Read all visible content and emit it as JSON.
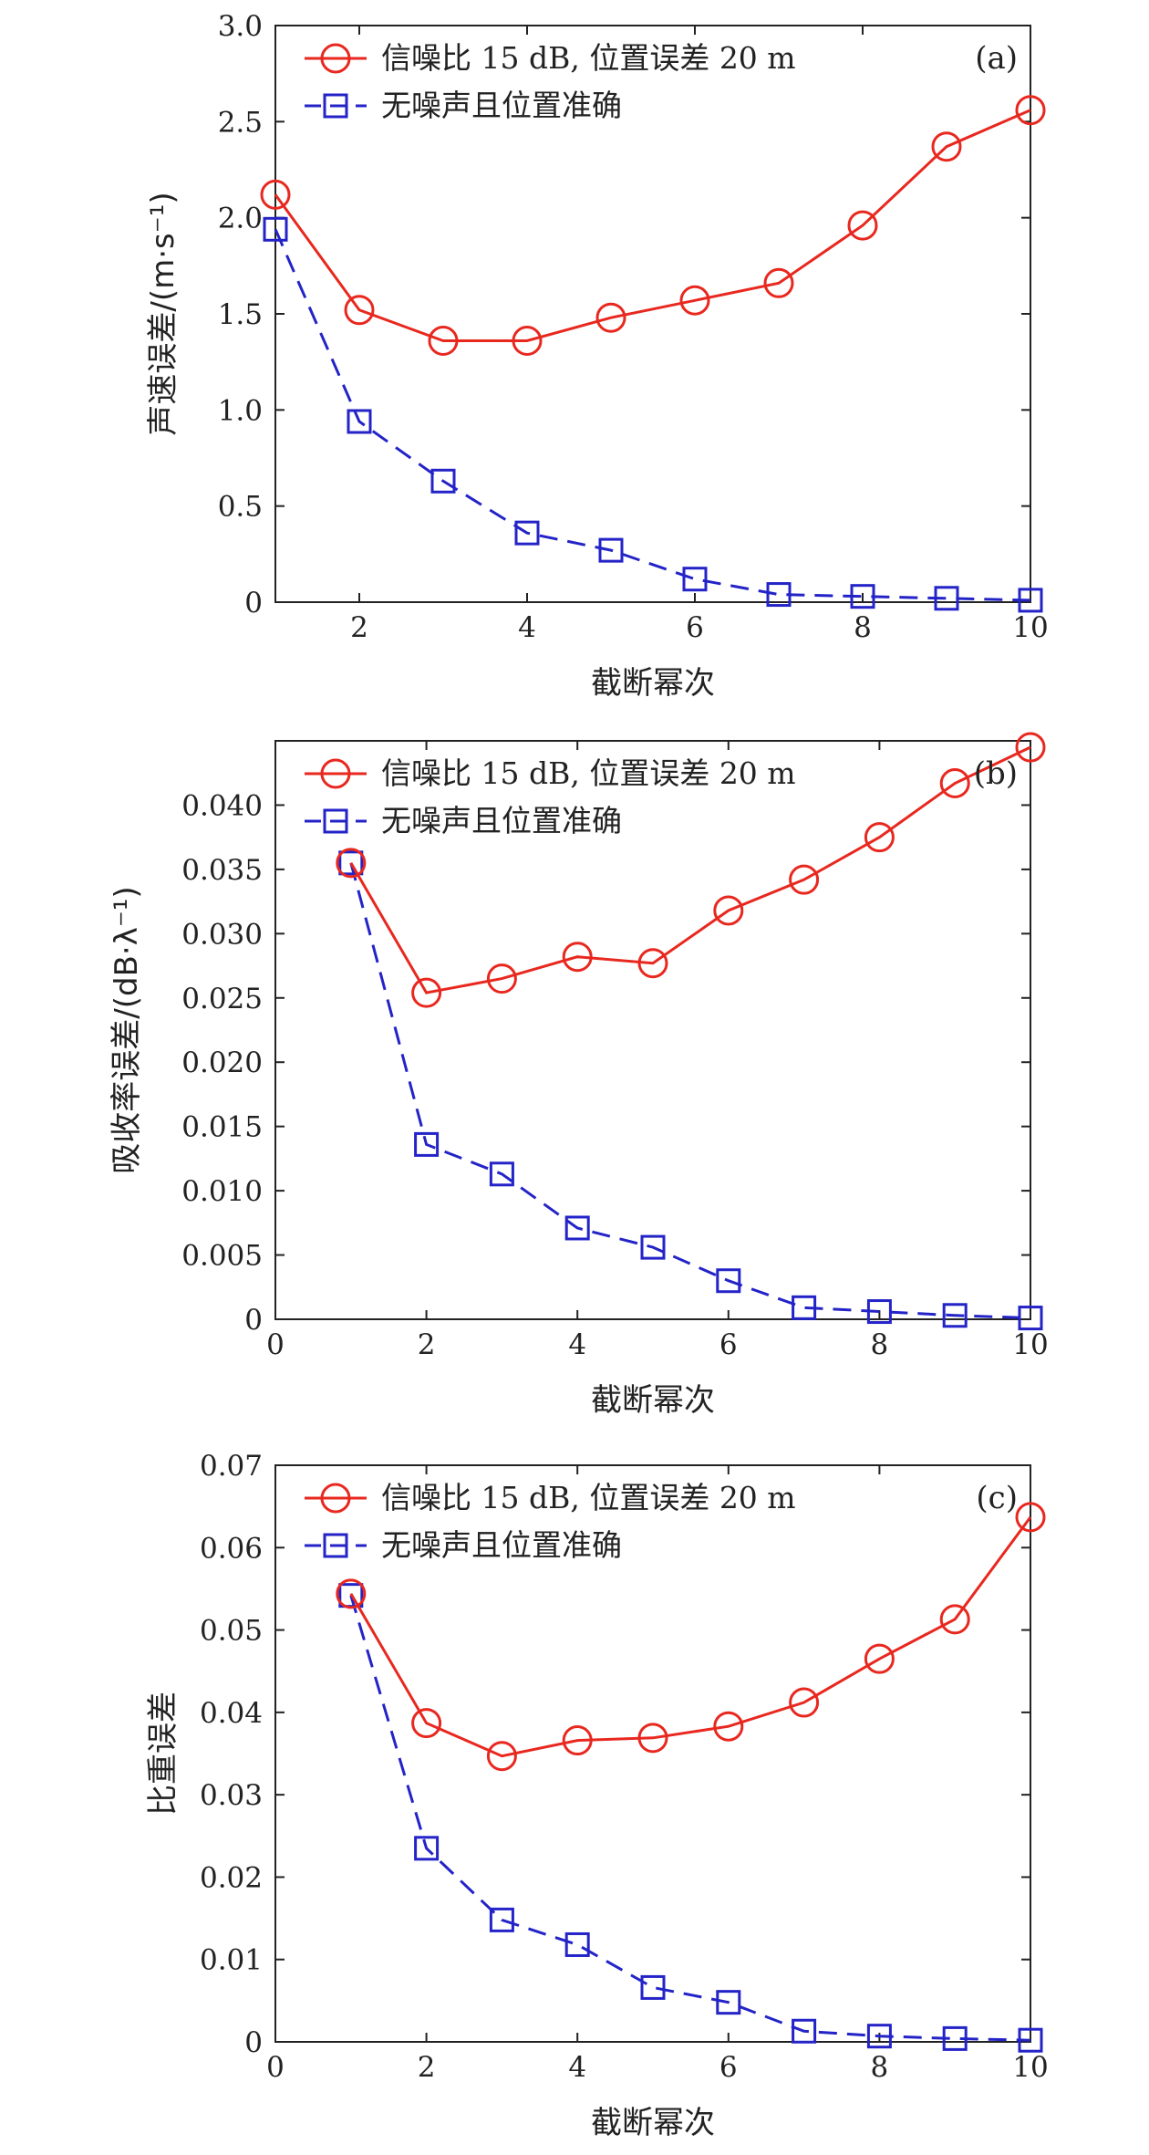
{
  "chart_data": [
    {
      "type": "line",
      "panel_label": "(a)",
      "xlabel": "截断幂次",
      "ylabel": "声速误差/(m·s⁻¹)",
      "xlim": [
        1,
        10
      ],
      "ylim": [
        0,
        3.0
      ],
      "xticks": [
        2,
        4,
        6,
        8,
        10
      ],
      "xtick_labels": [
        "2",
        "4",
        "6",
        "8",
        "10"
      ],
      "yticks": [
        0,
        0.5,
        1.0,
        1.5,
        2.0,
        2.5,
        3.0
      ],
      "ytick_labels": [
        "0",
        "0.5",
        "1.0",
        "1.5",
        "2.0",
        "2.5",
        "3.0"
      ],
      "legend_position": "top-left",
      "series": [
        {
          "name": "信噪比 15 dB, 位置误差 20 m",
          "color": "#e8281f",
          "marker": "circle",
          "line": "solid",
          "x": [
            1,
            2,
            3,
            4,
            5,
            6,
            7,
            8,
            9,
            10
          ],
          "values": [
            2.12,
            1.52,
            1.36,
            1.36,
            1.48,
            1.57,
            1.66,
            1.96,
            2.37,
            2.56
          ]
        },
        {
          "name": "无噪声且位置准确",
          "color": "#2323c8",
          "marker": "square",
          "line": "dashed",
          "x": [
            1,
            2,
            3,
            4,
            5,
            6,
            7,
            8,
            9,
            10
          ],
          "values": [
            1.94,
            0.94,
            0.63,
            0.36,
            0.27,
            0.12,
            0.04,
            0.03,
            0.02,
            0.01
          ]
        }
      ]
    },
    {
      "type": "line",
      "panel_label": "(b)",
      "xlabel": "截断幂次",
      "ylabel": "吸收率误差/(dB·λ⁻¹)",
      "xlim": [
        0,
        10
      ],
      "ylim": [
        0,
        0.045
      ],
      "xticks": [
        0,
        2,
        4,
        6,
        8,
        10
      ],
      "xtick_labels": [
        "0",
        "2",
        "4",
        "6",
        "8",
        "10"
      ],
      "yticks": [
        0,
        0.005,
        0.01,
        0.015,
        0.02,
        0.025,
        0.03,
        0.035,
        0.04
      ],
      "ytick_labels": [
        "0",
        "0.005",
        "0.010",
        "0.015",
        "0.020",
        "0.025",
        "0.030",
        "0.035",
        "0.040"
      ],
      "legend_position": "top-left",
      "series": [
        {
          "name": "信噪比 15 dB, 位置误差 20 m",
          "color": "#e8281f",
          "marker": "circle",
          "line": "solid",
          "x": [
            1,
            2,
            3,
            4,
            5,
            6,
            7,
            8,
            9,
            10
          ],
          "values": [
            0.0355,
            0.0254,
            0.0265,
            0.0282,
            0.0277,
            0.0318,
            0.0342,
            0.0375,
            0.0417,
            0.0445
          ]
        },
        {
          "name": "无噪声且位置准确",
          "color": "#2323c8",
          "marker": "square",
          "line": "dashed",
          "x": [
            1,
            2,
            3,
            4,
            5,
            6,
            7,
            8,
            9,
            10
          ],
          "values": [
            0.0355,
            0.0136,
            0.0113,
            0.0071,
            0.0056,
            0.003,
            0.0009,
            0.0006,
            0.0003,
            0.0001
          ]
        }
      ]
    },
    {
      "type": "line",
      "panel_label": "(c)",
      "xlabel": "截断幂次",
      "ylabel": "比重误差",
      "xlim": [
        0,
        10
      ],
      "ylim": [
        0,
        0.07
      ],
      "xticks": [
        0,
        2,
        4,
        6,
        8,
        10
      ],
      "xtick_labels": [
        "0",
        "2",
        "4",
        "6",
        "8",
        "10"
      ],
      "yticks": [
        0,
        0.01,
        0.02,
        0.03,
        0.04,
        0.05,
        0.06,
        0.07
      ],
      "ytick_labels": [
        "0",
        "0.01",
        "0.02",
        "0.03",
        "0.04",
        "0.05",
        "0.06",
        "0.07"
      ],
      "legend_position": "top-left",
      "series": [
        {
          "name": "信噪比 15 dB, 位置误差 20 m",
          "color": "#e8281f",
          "marker": "circle",
          "line": "solid",
          "x": [
            1,
            2,
            3,
            4,
            5,
            6,
            7,
            8,
            9,
            10
          ],
          "values": [
            0.0544,
            0.0387,
            0.0347,
            0.0366,
            0.0369,
            0.0383,
            0.0412,
            0.0465,
            0.0513,
            0.0637
          ]
        },
        {
          "name": "无噪声且位置准确",
          "color": "#2323c8",
          "marker": "square",
          "line": "dashed",
          "x": [
            1,
            2,
            3,
            4,
            5,
            6,
            7,
            8,
            9,
            10
          ],
          "values": [
            0.0542,
            0.0235,
            0.0148,
            0.0118,
            0.0066,
            0.0048,
            0.0013,
            0.0007,
            0.0004,
            0.0002
          ]
        }
      ]
    }
  ]
}
